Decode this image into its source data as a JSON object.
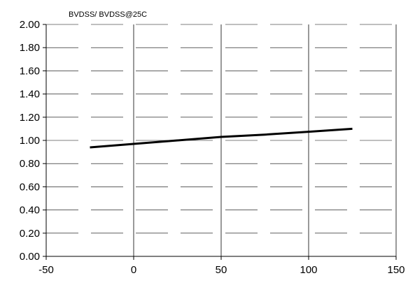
{
  "chart_data": {
    "type": "line",
    "title": "",
    "xlabel": "",
    "ylabel": "BVDSS/ BVDSS@25C",
    "xlim": [
      -50,
      150
    ],
    "ylim": [
      0,
      2
    ],
    "x_ticks": [
      -50,
      0,
      50,
      100,
      150
    ],
    "x_tick_labels": [
      "-50",
      "0",
      "50",
      "100",
      "150"
    ],
    "y_ticks": [
      0,
      0.2,
      0.4,
      0.6,
      0.8,
      1.0,
      1.2,
      1.4,
      1.6,
      1.8,
      2.0
    ],
    "y_tick_labels": [
      "0.00",
      "0.20",
      "0.40",
      "0.60",
      "0.80",
      "1.00",
      "1.20",
      "1.40",
      "1.60",
      "1.80",
      "2.00"
    ],
    "grid": {
      "x_major": true,
      "y_major": true,
      "y_style": "dashed"
    },
    "legend": "none",
    "colors": {
      "series": "#000000",
      "grid": "#000000",
      "axes": "#000000"
    },
    "series": [
      {
        "x": [
          -25,
          0,
          25,
          50,
          75,
          100,
          125
        ],
        "y": [
          0.94,
          0.97,
          1.0,
          1.03,
          1.05,
          1.075,
          1.1
        ]
      }
    ]
  }
}
